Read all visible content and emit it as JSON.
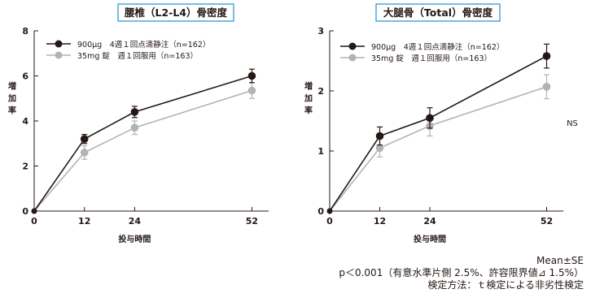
{
  "chart_data": [
    {
      "type": "line",
      "title": "腰椎（L2-L4）骨密度",
      "xlabel": "投与時間",
      "ylabel": "増加率",
      "x": [
        0,
        12,
        24,
        52
      ],
      "x_ticks": [
        "0",
        "12",
        "24",
        "52"
      ],
      "ylim": [
        0,
        8
      ],
      "y_ticks": [
        "0",
        "2",
        "4",
        "6",
        "8"
      ],
      "grid": false,
      "legend_position": "top-left",
      "series": [
        {
          "name": "900μg　4週１回点滴静注（n=162）",
          "color": "#231815",
          "values": [
            0,
            3.2,
            4.4,
            6.0
          ],
          "errors": [
            0,
            0.2,
            0.25,
            0.3
          ]
        },
        {
          "name": "35mg 錠　週１回服用（n=163）",
          "color": "#b3b3b3",
          "values": [
            0,
            2.6,
            3.7,
            5.35
          ],
          "errors": [
            0,
            0.3,
            0.3,
            0.35
          ]
        }
      ],
      "annotations": []
    },
    {
      "type": "line",
      "title": "大腿骨（Total）骨密度",
      "xlabel": "投与時間",
      "ylabel": "増加率",
      "x": [
        0,
        12,
        24,
        52
      ],
      "x_ticks": [
        "0",
        "12",
        "24",
        "52"
      ],
      "ylim": [
        0,
        3
      ],
      "y_ticks": [
        "0",
        "1",
        "2",
        "3"
      ],
      "grid": false,
      "legend_position": "top-left",
      "series": [
        {
          "name": "900μg　4週１回点滴静注（n=162）",
          "color": "#231815",
          "values": [
            0,
            1.25,
            1.55,
            2.58
          ],
          "errors": [
            0,
            0.15,
            0.17,
            0.2
          ]
        },
        {
          "name": "35mg 錠　週１回服用（n=163）",
          "color": "#b3b3b3",
          "values": [
            0,
            1.05,
            1.42,
            2.07
          ],
          "errors": [
            0,
            0.15,
            0.17,
            0.2
          ]
        }
      ],
      "annotations": [
        "NS"
      ]
    }
  ],
  "footnotes": [
    "Mean±SE",
    "p＜0.001（有意水準片側 2.5%、許容限界値⊿ 1.5%）",
    "検定方法：ｔ検定による非劣性検定"
  ]
}
